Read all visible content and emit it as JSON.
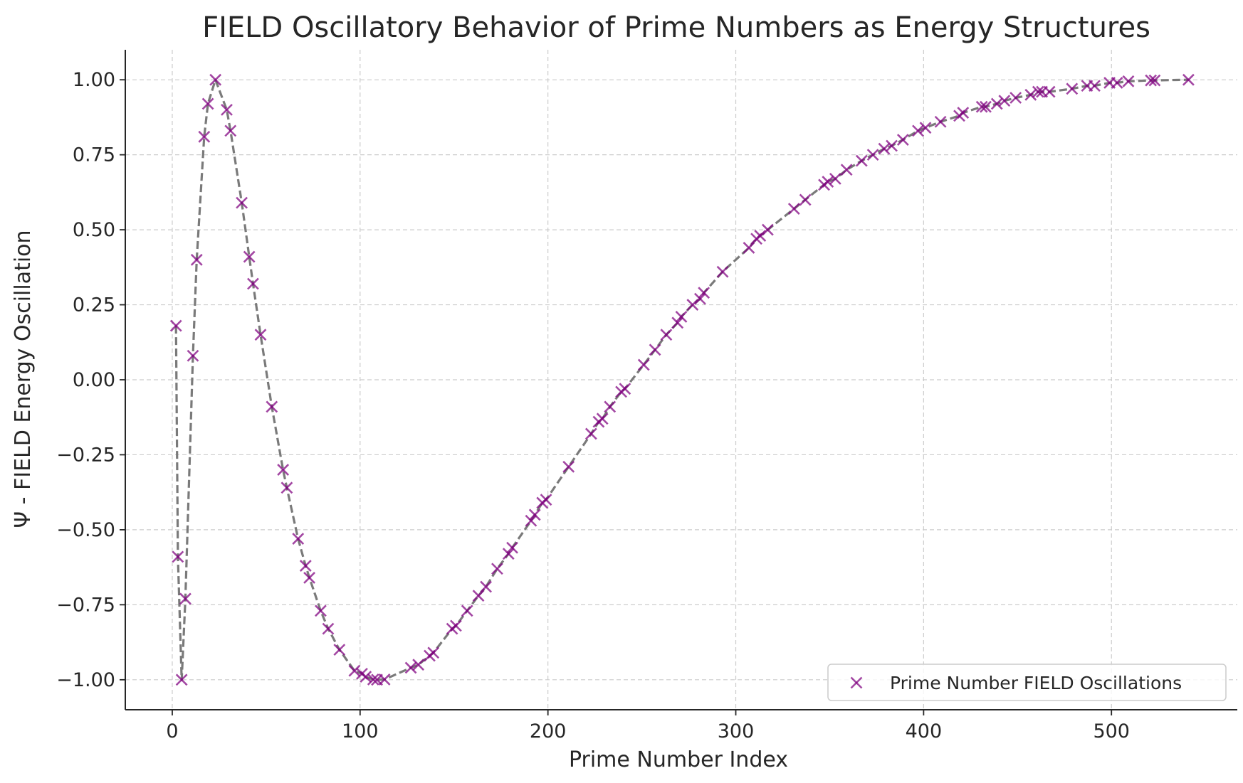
{
  "chart_data": {
    "type": "scatter",
    "title": "FIELD Oscillatory Behavior of Prime Numbers as Energy Structures",
    "xlabel": "Prime Number Index",
    "ylabel": "Ψ - FIELD Energy Oscillation",
    "xlim": [
      -25,
      567
    ],
    "ylim": [
      -1.1,
      1.1
    ],
    "xticks": [
      0,
      100,
      200,
      300,
      400,
      500
    ],
    "xtick_labels": [
      "0",
      "100",
      "200",
      "300",
      "400",
      "500"
    ],
    "yticks": [
      1.0,
      0.75,
      0.5,
      0.25,
      0.0,
      -0.25,
      -0.5,
      -0.75,
      -1.0
    ],
    "ytick_labels": [
      "1.00",
      "0.75",
      "0.50",
      "0.25",
      "0.00",
      "−0.25",
      "−0.50",
      "−0.75",
      "−1.00"
    ],
    "grid": true,
    "legend_position": "lower-right",
    "colors": {
      "marker": "#800080",
      "line": "#7a7a7a",
      "grid": "#cccccc",
      "axis": "#262626"
    },
    "series": [
      {
        "name": "Prime Number FIELD Oscillations",
        "marker": "x",
        "connected_line": "dashed",
        "x": [
          2,
          3,
          5,
          7,
          11,
          13,
          17,
          19,
          23,
          29,
          31,
          37,
          41,
          43,
          47,
          53,
          59,
          61,
          67,
          71,
          73,
          79,
          83,
          89,
          97,
          101,
          103,
          107,
          109,
          113,
          127,
          131,
          137,
          139,
          149,
          151,
          157,
          163,
          167,
          173,
          179,
          181,
          191,
          193,
          197,
          199,
          211,
          223,
          227,
          229,
          233,
          239,
          241,
          251,
          257,
          263,
          269,
          271,
          277,
          281,
          283,
          293,
          307,
          311,
          313,
          317,
          331,
          337,
          347,
          349,
          353,
          359,
          367,
          373,
          379,
          383,
          389,
          397,
          401,
          409,
          419,
          421,
          431,
          433,
          439,
          443,
          449,
          457,
          461,
          463,
          467,
          479,
          487,
          491,
          499,
          503,
          509,
          521,
          523,
          541
        ],
        "y": [
          0.18,
          -0.59,
          -1.0,
          -0.73,
          0.08,
          0.4,
          0.81,
          0.92,
          1.0,
          0.9,
          0.83,
          0.59,
          0.41,
          0.32,
          0.15,
          -0.09,
          -0.3,
          -0.36,
          -0.53,
          -0.62,
          -0.66,
          -0.77,
          -0.83,
          -0.9,
          -0.97,
          -0.98,
          -0.99,
          -0.999,
          -1.0,
          -0.999,
          -0.96,
          -0.95,
          -0.92,
          -0.91,
          -0.83,
          -0.82,
          -0.77,
          -0.72,
          -0.69,
          -0.63,
          -0.58,
          -0.56,
          -0.47,
          -0.45,
          -0.41,
          -0.4,
          -0.29,
          -0.18,
          -0.14,
          -0.13,
          -0.09,
          -0.04,
          -0.03,
          0.05,
          0.1,
          0.15,
          0.19,
          0.21,
          0.25,
          0.27,
          0.29,
          0.36,
          0.44,
          0.47,
          0.48,
          0.5,
          0.57,
          0.6,
          0.65,
          0.66,
          0.67,
          0.7,
          0.73,
          0.75,
          0.77,
          0.78,
          0.8,
          0.83,
          0.84,
          0.86,
          0.88,
          0.89,
          0.91,
          0.91,
          0.92,
          0.93,
          0.94,
          0.95,
          0.96,
          0.96,
          0.96,
          0.97,
          0.98,
          0.98,
          0.99,
          0.99,
          0.995,
          0.998,
          0.998,
          1.0
        ]
      }
    ]
  }
}
